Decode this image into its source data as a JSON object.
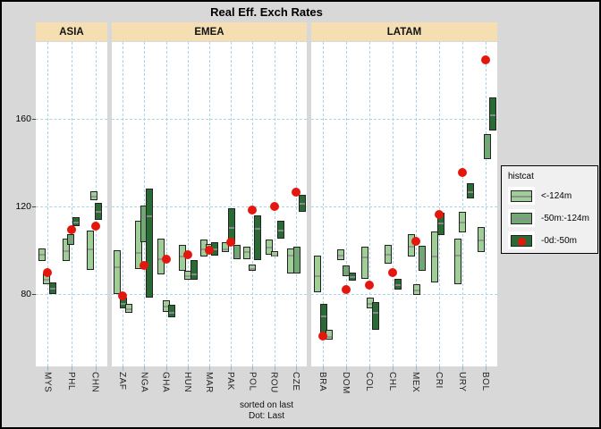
{
  "title": "Real Eff. Exch Rates",
  "footer": {
    "line1": "sorted on last",
    "line2": "Dot: Last"
  },
  "y_axis": {
    "ticks": [
      160,
      120,
      80
    ]
  },
  "legend": {
    "title": "histcat",
    "items": [
      {
        "cat": "light",
        "label": "<-124m",
        "dot": false
      },
      {
        "cat": "medium",
        "label": "-50m:-124m",
        "dot": false
      },
      {
        "cat": "dark",
        "label": "-0d:-50m",
        "dot": true
      }
    ]
  },
  "colors": {
    "background": "#d8d8d8",
    "panel": "#ffffff",
    "strip": "#f5dfb2",
    "grid": "#abd4e8",
    "bar_light": "#9fcf97",
    "bar_medium": "#6faa72",
    "bar_dark": "#2a6b35",
    "bar_outline": "#222222",
    "median_line": "#8f8f8f",
    "dot_red": "#e3170d",
    "legend_bg": "#f0f0f0"
  },
  "chart_data": {
    "type": "range-bar",
    "title": "Real Eff. Exch Rates",
    "ylim": [
      46,
      194
    ],
    "yticks": [
      80,
      120,
      160
    ],
    "legend_position": "right",
    "grid": "dashed",
    "panels": [
      {
        "name": "ASIA",
        "countries": [
          {
            "code": "MYS",
            "last": 90,
            "bars": [
              {
                "cat": "light",
                "lo": 95,
                "hi": 101,
                "mid": 98.5,
                "dx": -6
              },
              {
                "cat": "light",
                "lo": 84.5,
                "hi": 89.5,
                "mid": 87,
                "dx": -1
              },
              {
                "cat": "dark",
                "lo": 80,
                "hi": 85.5,
                "mid": 83,
                "dx": 6
              }
            ]
          },
          {
            "code": "PHL",
            "last": 109.5,
            "bars": [
              {
                "cat": "light",
                "lo": 95,
                "hi": 105.5,
                "mid": 100,
                "dx": -6
              },
              {
                "cat": "medium",
                "lo": 102.5,
                "hi": 107.5,
                "mid": 105,
                "dx": -1
              },
              {
                "cat": "dark",
                "lo": 111,
                "hi": 115,
                "mid": 113,
                "dx": 5
              }
            ]
          },
          {
            "code": "CHN",
            "last": 111,
            "bars": [
              {
                "cat": "light",
                "lo": 91,
                "hi": 109,
                "mid": 101,
                "dx": -6
              },
              {
                "cat": "light",
                "lo": 123,
                "hi": 127,
                "mid": 125,
                "dx": -2
              },
              {
                "cat": "dark",
                "lo": 114,
                "hi": 121.5,
                "mid": 118,
                "dx": 3
              }
            ]
          }
        ]
      },
      {
        "name": "EMEA",
        "countries": [
          {
            "code": "ZAF",
            "last": 79,
            "bars": [
              {
                "cat": "light",
                "lo": 80,
                "hi": 100,
                "mid": 92.5,
                "dx": -6
              },
              {
                "cat": "dark",
                "lo": 73.5,
                "hi": 78.5,
                "mid": 76,
                "dx": 1
              },
              {
                "cat": "light",
                "lo": 71.5,
                "hi": 75.5,
                "mid": 73.5,
                "dx": 7
              }
            ]
          },
          {
            "code": "NGA",
            "last": 93,
            "bars": [
              {
                "cat": "light",
                "lo": 91.5,
                "hi": 113.5,
                "mid": 99,
                "dx": -6
              },
              {
                "cat": "medium",
                "lo": 103.5,
                "hi": 120.5,
                "mid": 116,
                "dx": 0
              },
              {
                "cat": "dark",
                "lo": 78.5,
                "hi": 128,
                "mid": 116,
                "dx": 6
              }
            ]
          },
          {
            "code": "GHA",
            "last": 96,
            "bars": [
              {
                "cat": "light",
                "lo": 89,
                "hi": 105.5,
                "mid": 96.5,
                "dx": -6
              },
              {
                "cat": "light",
                "lo": 72,
                "hi": 77,
                "mid": 74.5,
                "dx": 0
              },
              {
                "cat": "dark",
                "lo": 69.5,
                "hi": 75,
                "mid": 72,
                "dx": 6
              }
            ]
          },
          {
            "code": "HUN",
            "last": 98,
            "bars": [
              {
                "cat": "light",
                "lo": 90.5,
                "hi": 102.5,
                "mid": 97.5,
                "dx": -6
              },
              {
                "cat": "light",
                "lo": 86.5,
                "hi": 90.5,
                "mid": 88.5,
                "dx": 0
              },
              {
                "cat": "dark",
                "lo": 86.5,
                "hi": 95.5,
                "mid": 89.5,
                "dx": 7
              }
            ]
          },
          {
            "code": "MAR",
            "last": 100,
            "bars": [
              {
                "cat": "light",
                "lo": 97,
                "hi": 105,
                "mid": 101,
                "dx": -6
              },
              {
                "cat": "light",
                "lo": 99.5,
                "hi": 103,
                "mid": 101,
                "dx": 0
              },
              {
                "cat": "dark",
                "lo": 97.5,
                "hi": 103.5,
                "mid": 101,
                "dx": 6
              }
            ]
          },
          {
            "code": "PAK",
            "last": 103.5,
            "bars": [
              {
                "cat": "light",
                "lo": 99,
                "hi": 103.5,
                "mid": 101,
                "dx": -6
              },
              {
                "cat": "dark",
                "lo": 103,
                "hi": 119,
                "mid": 110.5,
                "dx": 1
              },
              {
                "cat": "medium",
                "lo": 96,
                "hi": 102.5,
                "mid": 98,
                "dx": 7
              }
            ]
          },
          {
            "code": "POL",
            "last": 118.5,
            "bars": [
              {
                "cat": "light",
                "lo": 96,
                "hi": 101.5,
                "mid": 99.5,
                "dx": -6
              },
              {
                "cat": "light",
                "lo": 90.5,
                "hi": 93.5,
                "mid": 92,
                "dx": 0
              },
              {
                "cat": "dark",
                "lo": 95.5,
                "hi": 116,
                "mid": 110,
                "dx": 6
              }
            ]
          },
          {
            "code": "ROU",
            "last": 120,
            "bars": [
              {
                "cat": "light",
                "lo": 98,
                "hi": 105,
                "mid": 101.5,
                "dx": -6
              },
              {
                "cat": "light",
                "lo": 97,
                "hi": 99.5,
                "mid": 98,
                "dx": 0
              },
              {
                "cat": "dark",
                "lo": 105.5,
                "hi": 113.5,
                "mid": 109.5,
                "dx": 7
              }
            ]
          },
          {
            "code": "CZE",
            "last": 126.5,
            "bars": [
              {
                "cat": "light",
                "lo": 89.5,
                "hi": 101,
                "mid": 98,
                "dx": -6
              },
              {
                "cat": "medium",
                "lo": 89.5,
                "hi": 101.5,
                "mid": 99,
                "dx": 1
              },
              {
                "cat": "dark",
                "lo": 117.5,
                "hi": 125.5,
                "mid": 121.5,
                "dx": 7
              }
            ]
          }
        ]
      },
      {
        "name": "LATAM",
        "countries": [
          {
            "code": "BRA",
            "last": 61,
            "bars": [
              {
                "cat": "light",
                "lo": 81,
                "hi": 97.5,
                "mid": 88.5,
                "dx": -6
              },
              {
                "cat": "dark",
                "lo": 62,
                "hi": 75.5,
                "mid": 70,
                "dx": 1
              },
              {
                "cat": "light",
                "lo": 59,
                "hi": 63.5,
                "mid": 61,
                "dx": 7
              }
            ]
          },
          {
            "code": "DOM",
            "last": 82,
            "bars": [
              {
                "cat": "light",
                "lo": 95.5,
                "hi": 100.5,
                "mid": 98,
                "dx": -6
              },
              {
                "cat": "medium",
                "lo": 88,
                "hi": 93,
                "mid": 90.5,
                "dx": 0
              },
              {
                "cat": "dark",
                "lo": 86,
                "hi": 90,
                "mid": 88,
                "dx": 7
              }
            ]
          },
          {
            "code": "COL",
            "last": 84,
            "bars": [
              {
                "cat": "light",
                "lo": 87,
                "hi": 101.5,
                "mid": 97,
                "dx": -5
              },
              {
                "cat": "light",
                "lo": 73.5,
                "hi": 78.5,
                "mid": 76,
                "dx": 1
              },
              {
                "cat": "dark",
                "lo": 63.5,
                "hi": 76.5,
                "mid": 72,
                "dx": 7
              }
            ]
          },
          {
            "code": "CHL",
            "last": 90,
            "bars": [
              {
                "cat": "light",
                "lo": 94,
                "hi": 102.5,
                "mid": 98.5,
                "dx": -5
              },
              {
                "cat": "dark",
                "lo": 82,
                "hi": 87,
                "mid": 84.5,
                "dx": 6
              }
            ]
          },
          {
            "code": "MEX",
            "last": 104,
            "bars": [
              {
                "cat": "light",
                "lo": 97,
                "hi": 107.5,
                "mid": 102,
                "dx": -5
              },
              {
                "cat": "light",
                "lo": 79.5,
                "hi": 84.5,
                "mid": 82,
                "dx": 1
              },
              {
                "cat": "medium",
                "lo": 90.5,
                "hi": 102,
                "mid": 96,
                "dx": 7
              }
            ]
          },
          {
            "code": "CRI",
            "last": 116.5,
            "bars": [
              {
                "cat": "light",
                "lo": 85.5,
                "hi": 108.5,
                "mid": 97.5,
                "dx": -5
              },
              {
                "cat": "dark",
                "lo": 107,
                "hi": 117,
                "mid": 112.5,
                "dx": 2
              }
            ]
          },
          {
            "code": "URY",
            "last": 135.5,
            "bars": [
              {
                "cat": "light",
                "lo": 84.5,
                "hi": 105.5,
                "mid": 98,
                "dx": -5
              },
              {
                "cat": "light",
                "lo": 108,
                "hi": 117.5,
                "mid": 113,
                "dx": 0
              },
              {
                "cat": "dark",
                "lo": 123.5,
                "hi": 130.5,
                "mid": 127,
                "dx": 9
              }
            ]
          },
          {
            "code": "BOL",
            "last": 187,
            "bars": [
              {
                "cat": "light",
                "lo": 99,
                "hi": 110.5,
                "mid": 105,
                "dx": -5
              },
              {
                "cat": "medium",
                "lo": 141.5,
                "hi": 153,
                "mid": 148.5,
                "dx": 2
              },
              {
                "cat": "dark",
                "lo": 154.5,
                "hi": 170,
                "mid": 162,
                "dx": 8
              }
            ]
          }
        ]
      }
    ]
  }
}
